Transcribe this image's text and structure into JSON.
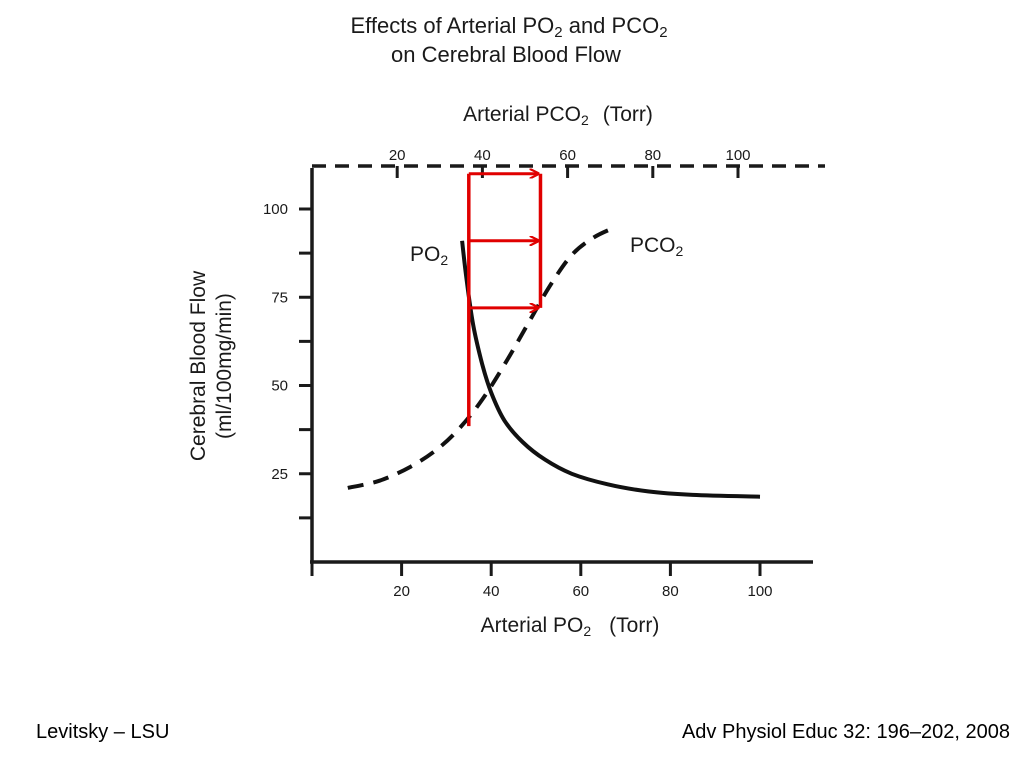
{
  "chart_data": {
    "type": "line",
    "title": {
      "line1_main": "Effects of Arterial PO",
      "line1_sub1": "2",
      "line1_mid": " and PCO",
      "line1_sub2": "2",
      "line2": "on Cerebral Blood Flow"
    },
    "xlabel": {
      "main": "Arterial PO",
      "sub": "2",
      "unit": "(Torr)"
    },
    "x2label": {
      "main": "Arterial PCO",
      "sub": "2",
      "unit": "(Torr)"
    },
    "ylabel": {
      "line1": "Cerebral Blood Flow",
      "line2": "(ml/100mg/min)"
    },
    "xlim": [
      0,
      110
    ],
    "ylim": [
      0,
      112
    ],
    "x_ticks": [
      20,
      40,
      60,
      80,
      100
    ],
    "x2_ticks": [
      20,
      40,
      60,
      80,
      100
    ],
    "y_ticks": [
      25,
      50,
      75,
      100
    ],
    "grid": false,
    "series": [
      {
        "name": "PO2",
        "label_main": "PO",
        "label_sub": "2",
        "style": "solid",
        "x": [
          33.5,
          34.5,
          36,
          38,
          40,
          43,
          47,
          52,
          58,
          66,
          75,
          85,
          100
        ],
        "y": [
          91,
          80,
          67,
          56,
          48,
          40,
          34,
          29,
          25,
          22,
          20,
          19,
          18.5
        ]
      },
      {
        "name": "PCO2",
        "label_main": "PCO",
        "label_sub": "2",
        "style": "dashed",
        "x": [
          8,
          15,
          22,
          28,
          33,
          38,
          43,
          48,
          53,
          58,
          63,
          68
        ],
        "y": [
          21,
          23,
          27,
          32,
          38,
          46,
          56,
          67,
          78,
          87,
          92,
          95
        ]
      }
    ],
    "annotations": {
      "color": "#e00000",
      "vertical_line": {
        "x": 35,
        "y_from": 38.5,
        "y_to": 110
      },
      "horizontal_arrows": [
        {
          "y": 110,
          "x_from": 35,
          "x_to": 51
        },
        {
          "y": 91,
          "x_from": 35,
          "x_to": 51
        },
        {
          "y": 72,
          "x_from": 35,
          "x_to": 51
        }
      ],
      "right_line": {
        "x": 51,
        "y_from": 72,
        "y_to": 110
      }
    }
  },
  "footer": {
    "left": "Levitsky – LSU",
    "right": "Adv Physiol Educ 32: 196–202, 2008"
  }
}
